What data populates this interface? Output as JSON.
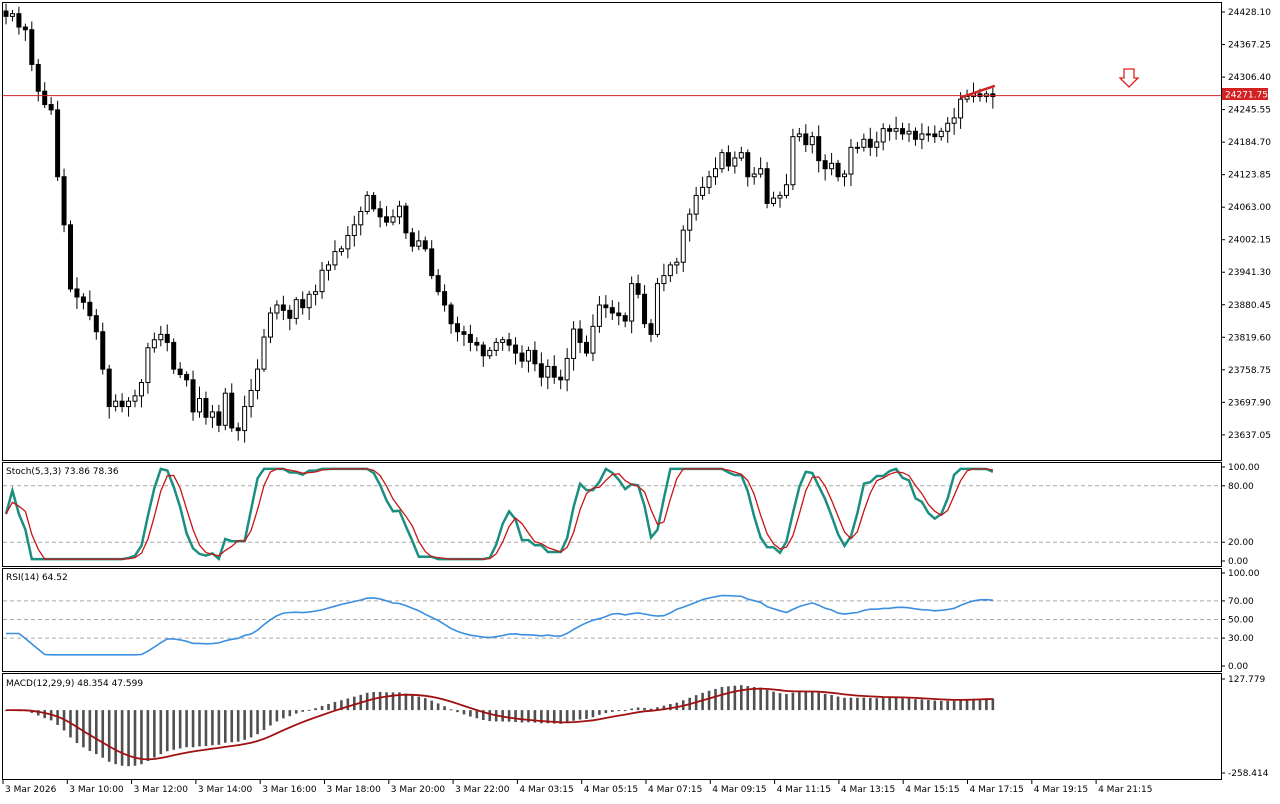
{
  "chart_data": [
    {
      "type": "candlestick",
      "title": "",
      "current_price_label": "24271.75",
      "current_price": 24271.75,
      "ylim": [
        23590,
        24445
      ],
      "y_ticks": [
        24428.1,
        24367.25,
        24306.4,
        24245.55,
        24184.7,
        24123.85,
        24063.0,
        24002.15,
        23941.3,
        23880.45,
        23819.6,
        23758.75,
        23697.9,
        23637.05
      ],
      "y_tick_labels": [
        "24428.10",
        "24367.25",
        "24306.40",
        "24245.55",
        "24184.70",
        "24123.85",
        "24063.00",
        "24002.15",
        "23941.30",
        "23880.45",
        "23819.60",
        "23758.75",
        "23697.90",
        "23637.05"
      ],
      "x_labels": [
        "3 Mar 2026",
        "3 Mar 10:00",
        "3 Mar 12:00",
        "3 Mar 14:00",
        "3 Mar 16:00",
        "3 Mar 18:00",
        "3 Mar 20:00",
        "3 Mar 22:00",
        "4 Mar 03:15",
        "4 Mar 05:15",
        "4 Mar 07:15",
        "4 Mar 09:15",
        "4 Mar 11:15",
        "4 Mar 13:15",
        "4 Mar 15:15",
        "4 Mar 17:15",
        "4 Mar 19:15",
        "4 Mar 21:15"
      ],
      "close": [
        24420,
        24425,
        24400,
        24395,
        24330,
        24280,
        24255,
        24245,
        24120,
        24030,
        23910,
        23895,
        23885,
        23860,
        23830,
        23760,
        23690,
        23700,
        23690,
        23700,
        23710,
        23735,
        23800,
        23815,
        23825,
        23810,
        23760,
        23750,
        23740,
        23680,
        23705,
        23670,
        23680,
        23655,
        23715,
        23650,
        23645,
        23690,
        23720,
        23760,
        23820,
        23865,
        23880,
        23870,
        23855,
        23890,
        23875,
        23900,
        23905,
        23945,
        23955,
        23980,
        23985,
        24010,
        24030,
        24055,
        24085,
        24060,
        24045,
        24035,
        24045,
        24065,
        24015,
        23990,
        24000,
        23985,
        23935,
        23905,
        23880,
        23845,
        23830,
        23825,
        23810,
        23805,
        23785,
        23795,
        23810,
        23815,
        23805,
        23790,
        23775,
        23795,
        23770,
        23745,
        23765,
        23745,
        23740,
        23780,
        23835,
        23810,
        23790,
        23840,
        23880,
        23875,
        23865,
        23860,
        23850,
        23920,
        23900,
        23845,
        23825,
        23920,
        23935,
        23955,
        23960,
        24020,
        24050,
        24085,
        24100,
        24120,
        24135,
        24165,
        24140,
        24155,
        24165,
        24120,
        24125,
        24135,
        24070,
        24080,
        24085,
        24105,
        24195,
        24200,
        24180,
        24195,
        24150,
        24135,
        24145,
        24120,
        24125,
        24175,
        24175,
        24190,
        24175,
        24185,
        24210,
        24205,
        24210,
        24200,
        24205,
        24190,
        24200,
        24200,
        24195,
        24205,
        24220,
        24230,
        24265,
        24270,
        24275,
        24270,
        24275,
        24270
      ],
      "stochastic": {
        "label": "Stoch(5,3,3) 73.86 78.36",
        "main": 73.86,
        "signal": 78.36,
        "levels": [
          100,
          80,
          20,
          0
        ],
        "level_labels": [
          "100.00",
          "80.00",
          "20.00",
          "0.00"
        ]
      },
      "rsi": {
        "label": "RSI(14) 64.52",
        "value": 64.52,
        "levels": [
          100,
          70,
          50,
          30,
          0
        ],
        "level_labels": [
          "100.00",
          "70.00",
          "50.00",
          "30.00",
          "0.00"
        ]
      },
      "macd": {
        "label": "MACD(12,29,9) 48.354 47.599",
        "macd": 48.354,
        "signal": 47.599,
        "ylim": [
          -258.414,
          127.779
        ],
        "tick_labels": [
          "127.779",
          "-258.414"
        ]
      },
      "colors": {
        "price_line": "#d22222",
        "stoch_main": "#1a8f80",
        "stoch_signal": "#c81414",
        "rsi": "#3a8fe0",
        "macd_hist": "#505050",
        "macd_signal": "#a01010",
        "arrow": "#e02020"
      },
      "icons": [
        "sell-arrow-down-icon"
      ]
    }
  ]
}
